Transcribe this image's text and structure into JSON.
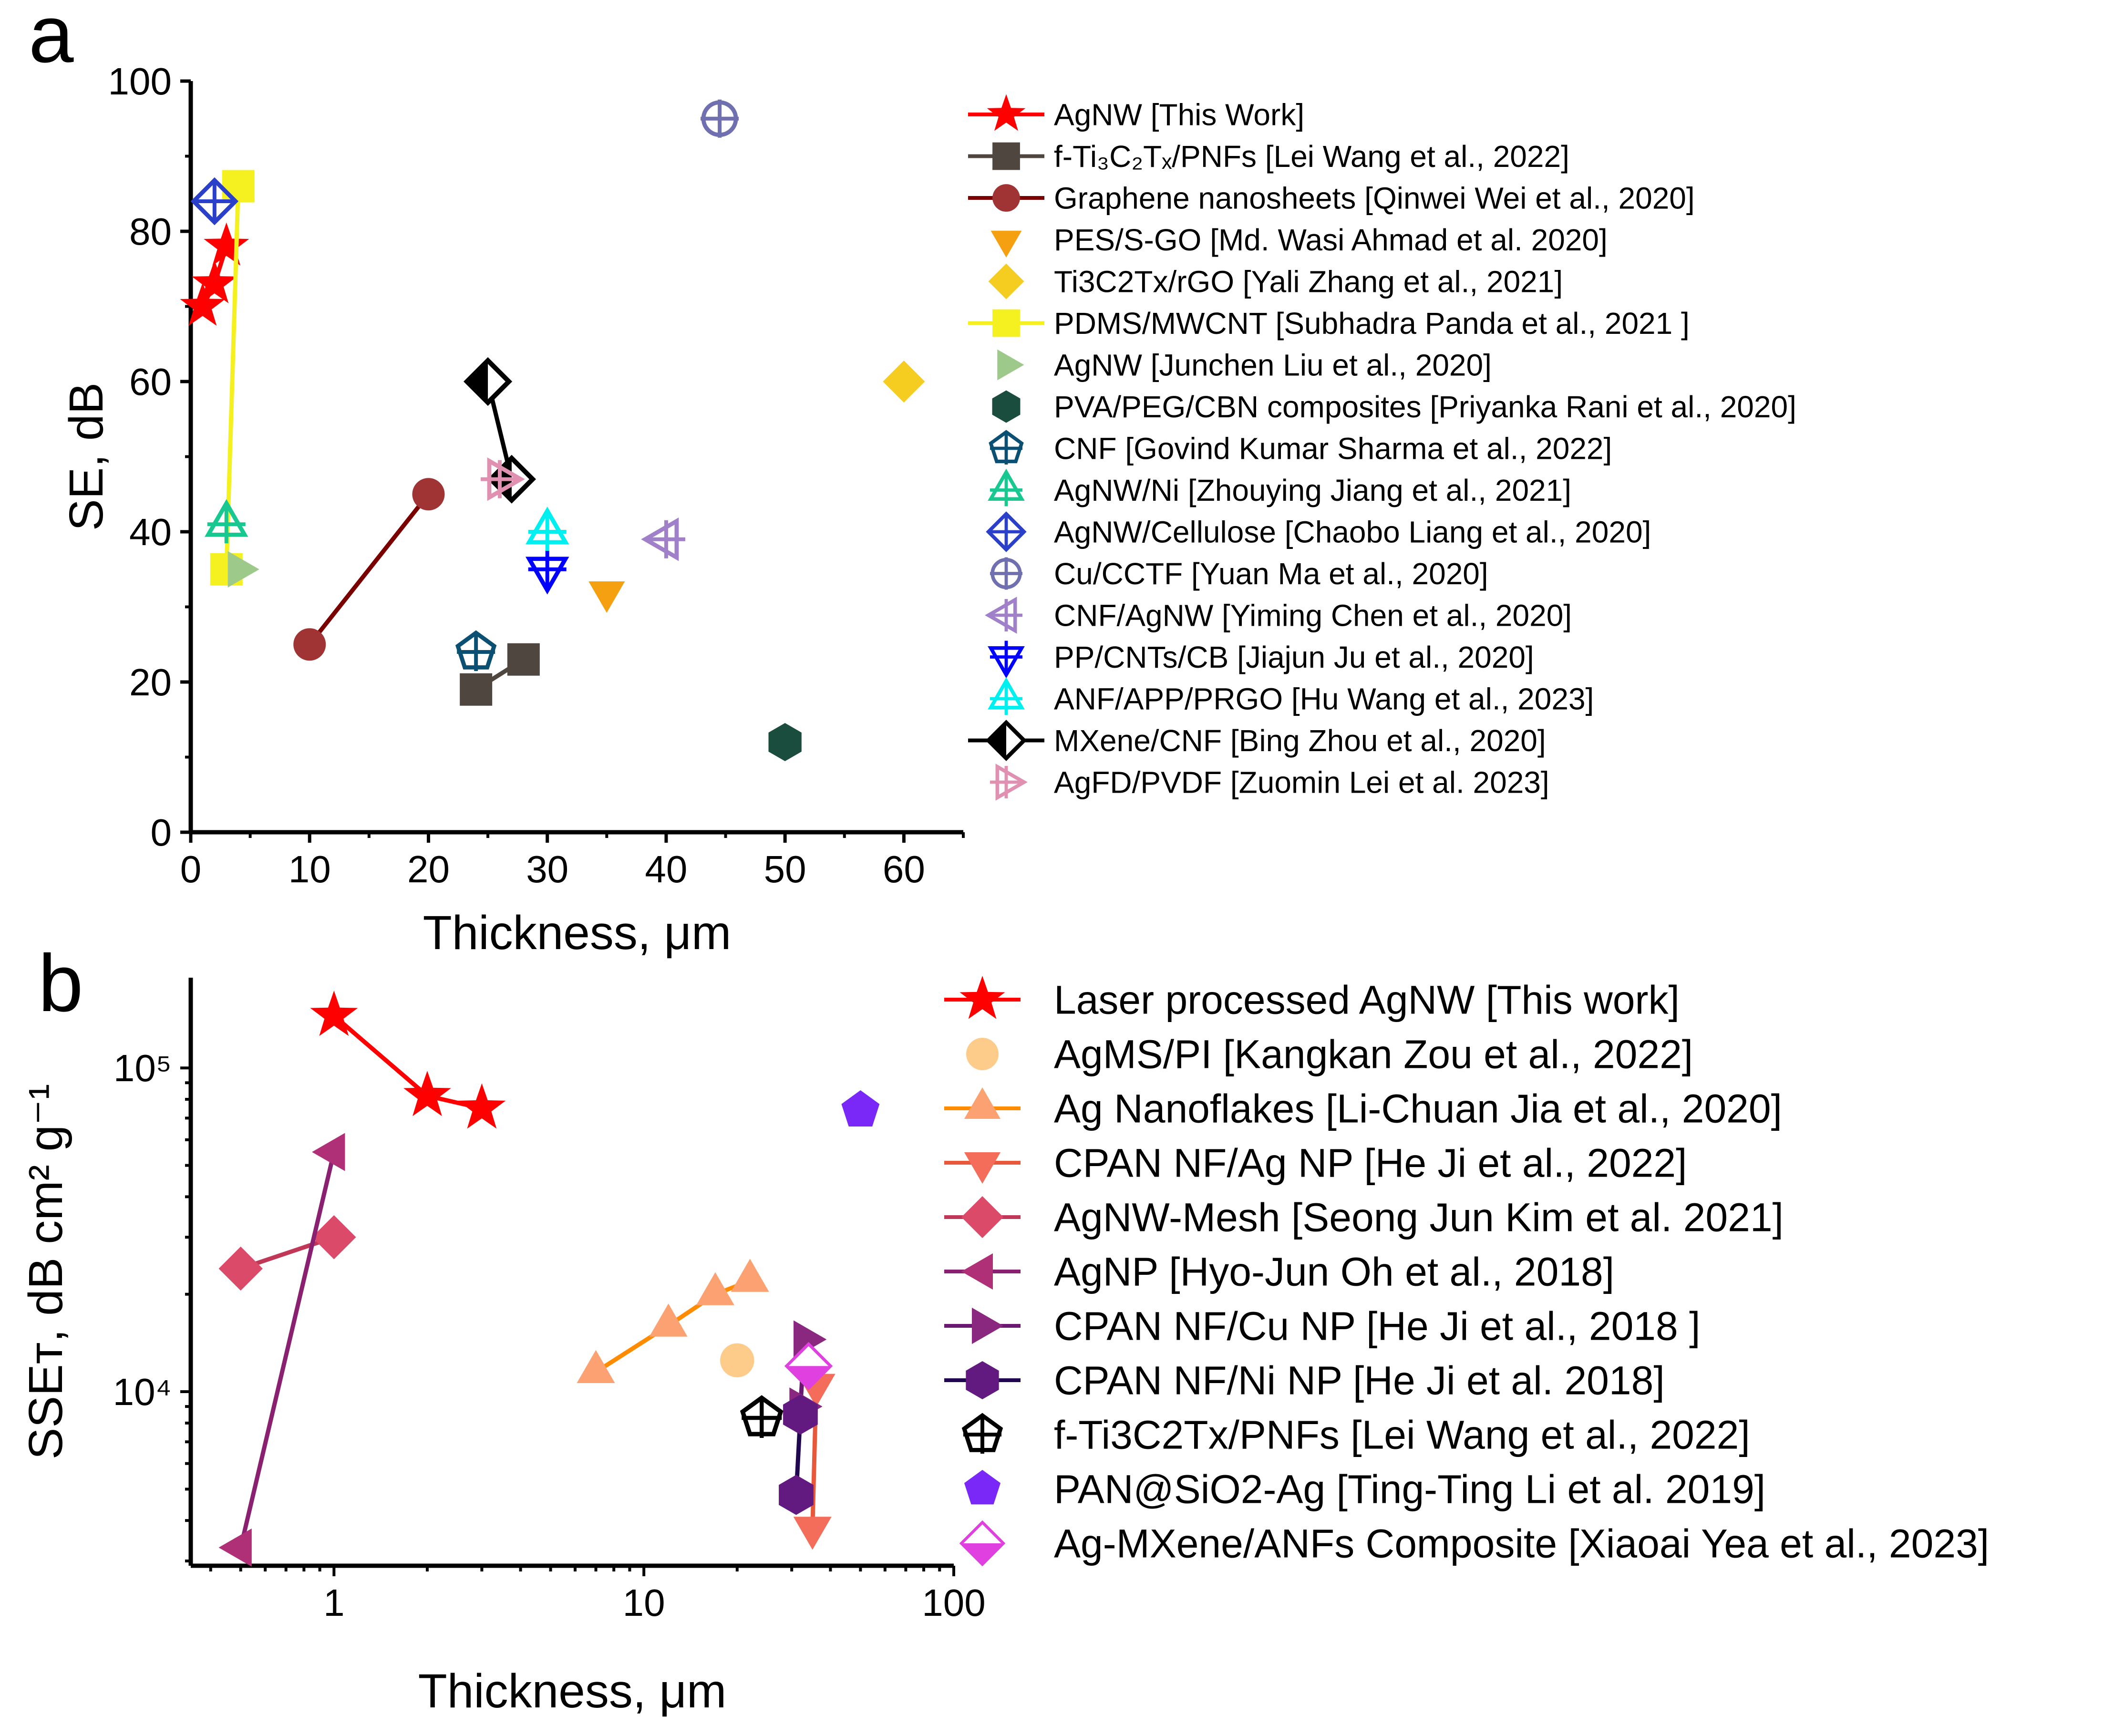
{
  "chart_data": [
    {
      "panel": "a",
      "type": "scatter",
      "xlabel": "Thickness, μm",
      "ylabel": "SE, dB",
      "xlim": [
        0,
        65
      ],
      "ylim": [
        0,
        100
      ],
      "xticks": [
        "0",
        "10",
        "20",
        "30",
        "40",
        "50",
        "60"
      ],
      "yticks": [
        "0",
        "20",
        "40",
        "60",
        "80",
        "100"
      ],
      "legend_placement": "right",
      "series": [
        {
          "name": "AgNW [This Work]",
          "color": "#ff0000",
          "marker": "star",
          "line": true,
          "points": [
            [
              1,
              70
            ],
            [
              2,
              73
            ],
            [
              3,
              78
            ]
          ]
        },
        {
          "name": "f-Ti₃C₂Tₓ/PNFs [Lei Wang et al., 2022]",
          "color": "#4f4640",
          "marker": "square",
          "line": true,
          "points": [
            [
              24,
              19
            ],
            [
              28,
              23
            ]
          ]
        },
        {
          "name": "Graphene nanosheets [Qinwei Wei et al., 2020]",
          "color": "#a03434",
          "linecolor": "#7a0000",
          "marker": "circle",
          "line": true,
          "points": [
            [
              10,
              25
            ],
            [
              20,
              45
            ]
          ]
        },
        {
          "name": "PES/S-GO [Md. Wasi Ahmad et al. 2020]",
          "color": "#f5a010",
          "marker": "tri-down",
          "line": false,
          "points": [
            [
              35,
              32
            ]
          ]
        },
        {
          "name": "Ti3C2Tx/rGO [Yali Zhang et al., 2021]",
          "color": "#f5cc20",
          "marker": "diamond",
          "line": false,
          "points": [
            [
              60,
              60
            ]
          ]
        },
        {
          "name": "PDMS/MWCNT [Subhadra Panda et al., 2021 ]",
          "color": "#f5f020",
          "marker": "square",
          "line": true,
          "points": [
            [
              4,
              86
            ],
            [
              3,
              35
            ]
          ]
        },
        {
          "name": "AgNW [Junchen Liu et al., 2020]",
          "color": "#9dc98a",
          "marker": "tri-right",
          "line": false,
          "points": [
            [
              4,
              35
            ]
          ]
        },
        {
          "name": "PVA/PEG/CBN composites [Priyanka Rani et al., 2020]",
          "color": "#1b4d3e",
          "marker": "hexagon",
          "line": false,
          "points": [
            [
              50,
              12
            ]
          ]
        },
        {
          "name": "CNF [Govind Kumar Sharma et al., 2022]",
          "color": "#0b5073",
          "marker": "pentagon-open",
          "line": false,
          "points": [
            [
              24,
              24
            ]
          ]
        },
        {
          "name": "AgNW/Ni [Zhouying Jiang et al., 2021]",
          "color": "#18c890",
          "marker": "tri-up-open",
          "line": false,
          "points": [
            [
              3,
              41
            ]
          ]
        },
        {
          "name": "AgNW/Cellulose [Chaobo Liang et al., 2020]",
          "color": "#2a40c8",
          "marker": "diamond-open",
          "line": false,
          "points": [
            [
              2,
              84
            ]
          ]
        },
        {
          "name": "Cu/CCTF [Yuan Ma et al., 2020]",
          "color": "#7070b0",
          "marker": "circle-open",
          "line": false,
          "points": [
            [
              44.5,
              95
            ]
          ]
        },
        {
          "name": "CNF/AgNW [Yiming Chen et al., 2020]",
          "color": "#a080c8",
          "marker": "tri-left-open",
          "line": false,
          "points": [
            [
              40,
              39
            ]
          ]
        },
        {
          "name": "PP/CNTs/CB [Jiajun Ju et al., 2020]",
          "color": "#0000ff",
          "marker": "tri-down-open",
          "line": false,
          "points": [
            [
              30,
              35
            ]
          ]
        },
        {
          "name": "ANF/APP/PRGO [Hu Wang et al., 2023]",
          "color": "#00f0f0",
          "marker": "tri-up-open",
          "line": false,
          "points": [
            [
              30,
              40
            ]
          ]
        },
        {
          "name": "MXene/CNF [Bing Zhou et al., 2020]",
          "color": "#000000",
          "marker": "diamond-half",
          "line": true,
          "points": [
            [
              25,
              60
            ],
            [
              27,
              47
            ]
          ]
        },
        {
          "name": "AgFD/PVDF [Zuomin Lei et al. 2023]",
          "color": "#e090b0",
          "marker": "tri-right-open",
          "line": false,
          "points": [
            [
              26,
              47
            ]
          ]
        }
      ]
    },
    {
      "panel": "b",
      "type": "scatter",
      "xlabel": "Thickness, μm",
      "ylabel": "SSEᴛ, dB cm² g⁻¹",
      "xscale": "log",
      "yscale": "log",
      "xlim": [
        0.345,
        100
      ],
      "ylim": [
        2900,
        190000
      ],
      "xticks": [
        {
          "v": 1,
          "t": "1"
        },
        {
          "v": 10,
          "t": "10"
        },
        {
          "v": 100,
          "t": "100"
        }
      ],
      "yticks": [
        {
          "v": 10000,
          "t": "10⁴"
        },
        {
          "v": 100000,
          "t": "10⁵"
        }
      ],
      "legend_placement": "right",
      "series": [
        {
          "name": "Laser processed AgNW [This work]",
          "color": "#ff0000",
          "marker": "star",
          "line": true,
          "points": [
            [
              1,
              145000
            ],
            [
              2,
              82000
            ],
            [
              3,
              75000
            ]
          ]
        },
        {
          "name": "AgMS/PI [Kangkan Zou et al., 2022]",
          "color": "#fdcc8a",
          "marker": "circle",
          "line": false,
          "points": [
            [
              20,
              12500
            ]
          ]
        },
        {
          "name": "Ag Nanoflakes [Li-Chuan Jia et al., 2020]",
          "color": "#fca272",
          "linecolor": "#ff8c00",
          "marker": "tri-up",
          "line": true,
          "points": [
            [
              7,
              11500
            ],
            [
              12,
              16000
            ],
            [
              17,
              20000
            ],
            [
              22,
              22000
            ]
          ]
        },
        {
          "name": " CPAN NF/Ag NP [He Ji et al., 2022]",
          "color": "#f46d5a",
          "linecolor": "#e8583a",
          "marker": "tri-down",
          "line": true,
          "points": [
            [
              36,
              10500
            ],
            [
              35,
              3800
            ]
          ]
        },
        {
          "name": " AgNW-Mesh [Seong Jun Kim et al. 2021]",
          "color": "#dc4a6a",
          "linecolor": "#c03858",
          "marker": "diamond",
          "line": true,
          "points": [
            [
              0.5,
              24000
            ],
            [
              1,
              30000
            ]
          ]
        },
        {
          "name": " AgNP [Hyo-Jun Oh et al., 2018]",
          "color": "#b03078",
          "linecolor": "#8a2070",
          "marker": "tri-left",
          "line": true,
          "points": [
            [
              0.5,
              3300
            ],
            [
              1,
              55000
            ]
          ]
        },
        {
          "name": "CPAN NF/Cu NP [He Ji et al., 2018 ]",
          "color": "#8a2880",
          "linecolor": "#6a1870",
          "marker": "tri-right",
          "line": true,
          "points": [
            [
              33,
              14500
            ],
            [
              32,
              9000
            ]
          ]
        },
        {
          "name": "CPAN NF/Ni NP [He Ji et al. 2018]",
          "color": "#621a80",
          "linecolor": "#200850",
          "marker": "hexagon",
          "line": true,
          "points": [
            [
              31,
              4800
            ],
            [
              32,
              8500
            ]
          ]
        },
        {
          "name": "f-Ti3C2Tx/PNFs [Lei Wang et al., 2022]",
          "color": "#000000",
          "marker": "pentagon-open",
          "line": false,
          "points": [
            [
              24,
              8300
            ]
          ]
        },
        {
          "name": "PAN@SiO2-Ag [Ting-Ting Li et al. 2019]",
          "color": "#7a28f8",
          "marker": "pentagon",
          "line": false,
          "points": [
            [
              50,
              74000
            ]
          ]
        },
        {
          "name": "Ag-MXene/ANFs Composite [Xiaoai Yea et al., 2023]",
          "color": "#e040e0",
          "marker": "diamond-halfbottom",
          "line": false,
          "points": [
            [
              34,
              12000
            ]
          ]
        }
      ]
    }
  ],
  "panels": {
    "a": "a",
    "b": "b"
  }
}
